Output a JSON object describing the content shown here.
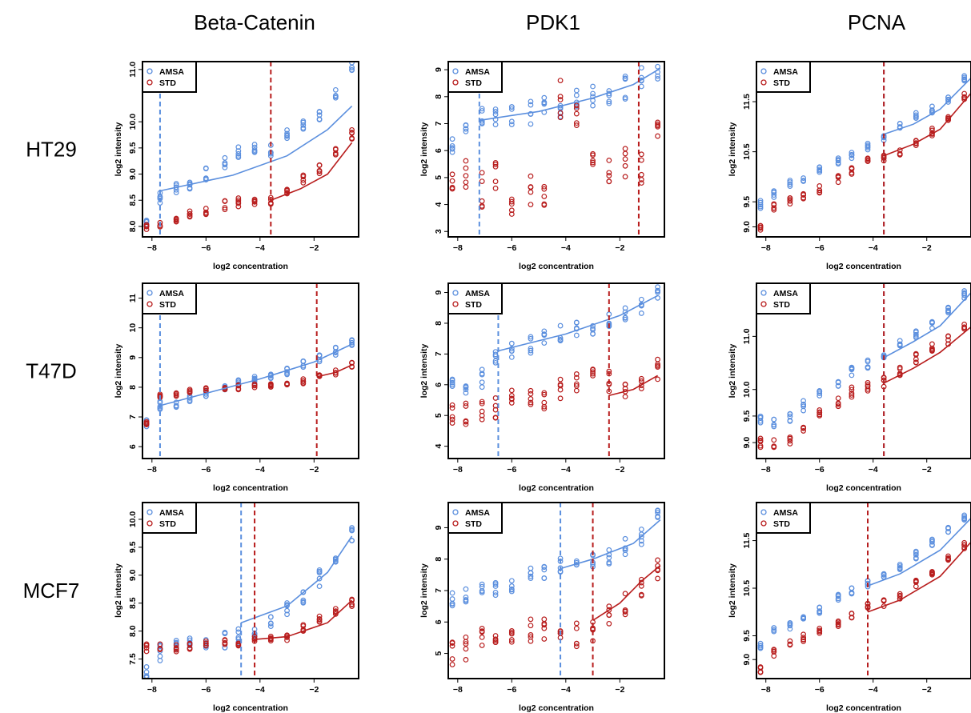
{
  "colors": {
    "AMSA": "#5b8fde",
    "STD": "#b81d1d"
  },
  "column_titles": [
    "Beta-Catenin",
    "PDK1",
    "PCNA"
  ],
  "row_labels": [
    "HT29",
    "T47D",
    "MCF7"
  ],
  "chart_data": [
    {
      "type": "scatter",
      "row": "HT29",
      "column": "Beta-Catenin",
      "xlabel": "log2 concentration",
      "ylabel": "log2 intensity",
      "xlim": [
        -8.35,
        -0.35
      ],
      "ylim": [
        7.8,
        11.15
      ],
      "xticks": [
        -8,
        -6,
        -4,
        -2
      ],
      "yticks": [
        8.0,
        8.5,
        9.0,
        9.5,
        10.0,
        11.0
      ],
      "ytick_labels": [
        "8.0",
        "8.5",
        "9.0",
        "9.5",
        "10.0",
        "11.0"
      ],
      "legend": [
        "AMSA",
        "STD"
      ],
      "legend_position": "top-left",
      "series": [
        {
          "name": "AMSA",
          "mean_at_levels": [
            8.1,
            8.55,
            8.75,
            8.8,
            9.0,
            9.2,
            9.4,
            9.5,
            9.45,
            9.75,
            9.95,
            10.15,
            10.5,
            11.05
          ],
          "spread": 0.12,
          "fit": [
            [
              -7.7,
              8.68
            ],
            [
              -5,
              8.98
            ],
            [
              -3,
              9.35
            ],
            [
              -1.5,
              9.85
            ],
            [
              -0.6,
              10.3
            ]
          ],
          "cutoff": -7.7
        },
        {
          "name": "STD",
          "mean_at_levels": [
            7.95,
            8.0,
            8.15,
            8.2,
            8.3,
            8.4,
            8.45,
            8.5,
            8.5,
            8.65,
            8.9,
            9.1,
            9.4,
            9.75
          ],
          "spread": 0.1,
          "fit": [
            [
              -3.6,
              8.5
            ],
            [
              -2.5,
              8.72
            ],
            [
              -1.5,
              9.0
            ],
            [
              -0.6,
              9.6
            ]
          ],
          "cutoff": -3.6
        }
      ]
    },
    {
      "type": "scatter",
      "row": "HT29",
      "column": "PDK1",
      "xlabel": "log2 concentration",
      "ylabel": "log2 intensity",
      "xlim": [
        -8.35,
        -0.35
      ],
      "ylim": [
        2.8,
        9.3
      ],
      "xticks": [
        -8,
        -6,
        -4,
        -2
      ],
      "yticks": [
        3,
        4,
        5,
        6,
        7,
        8,
        9
      ],
      "ytick_labels": [
        "3",
        "4",
        "5",
        "6",
        "7",
        "8",
        "9"
      ],
      "legend": [
        "AMSA",
        "STD"
      ],
      "legend_position": "top-left",
      "series": [
        {
          "name": "AMSA",
          "mean_at_levels": [
            6.3,
            6.8,
            7.2,
            7.2,
            7.3,
            7.4,
            7.6,
            7.7,
            7.8,
            7.95,
            8.15,
            8.35,
            8.75,
            9.05
          ],
          "spread": 0.45,
          "fit": [
            [
              -7.2,
              7.12
            ],
            [
              -5,
              7.45
            ],
            [
              -3,
              7.95
            ],
            [
              -1.5,
              8.45
            ],
            [
              -0.5,
              9.05
            ]
          ],
          "cutoff": -7.2
        },
        {
          "name": "STD",
          "mean_at_levels": [
            4.5,
            5.2,
            4.5,
            5.0,
            4.3,
            4.6,
            4.0,
            7.9,
            7.2,
            5.2,
            5.4,
            5.7,
            5.3,
            6.6
          ],
          "spread": 0.7,
          "fit": [],
          "cutoff": -1.3
        }
      ]
    },
    {
      "type": "scatter",
      "row": "HT29",
      "column": "PCNA",
      "xlabel": "log2 concentration",
      "ylabel": "log2 intensity",
      "xlim": [
        -8.35,
        -0.35
      ],
      "ylim": [
        8.8,
        12.3
      ],
      "xticks": [
        -8,
        -6,
        -4,
        -2
      ],
      "yticks": [
        9.0,
        9.5,
        10.5,
        11.5
      ],
      "ytick_labels": [
        "9.0",
        "9.5",
        "10.5",
        "11.5"
      ],
      "legend": [
        "AMSA",
        "STD"
      ],
      "legend_position": "top-left",
      "series": [
        {
          "name": "AMSA",
          "mean_at_levels": [
            9.45,
            9.65,
            9.85,
            9.95,
            10.15,
            10.3,
            10.45,
            10.6,
            10.8,
            11.0,
            11.2,
            11.35,
            11.55,
            11.95
          ],
          "spread": 0.08,
          "fit": [
            [
              -3.6,
              10.85
            ],
            [
              -2.5,
              11.05
            ],
            [
              -1.5,
              11.35
            ],
            [
              -0.3,
              12.0
            ]
          ],
          "cutoff": -3.6
        },
        {
          "name": "STD",
          "mean_at_levels": [
            9.0,
            9.4,
            9.5,
            9.6,
            9.75,
            9.95,
            10.1,
            10.3,
            10.4,
            10.5,
            10.7,
            10.9,
            11.15,
            11.6
          ],
          "spread": 0.08,
          "fit": [
            [
              -3.6,
              10.42
            ],
            [
              -2.5,
              10.65
            ],
            [
              -1.5,
              10.95
            ],
            [
              -0.3,
              11.7
            ]
          ],
          "cutoff": -3.6
        }
      ]
    },
    {
      "type": "scatter",
      "row": "T47D",
      "column": "Beta-Catenin",
      "xlabel": "log2 concentration",
      "ylabel": "log2 intensity",
      "xlim": [
        -8.35,
        -0.35
      ],
      "ylim": [
        5.6,
        11.5
      ],
      "xticks": [
        -8,
        -6,
        -4,
        -2
      ],
      "yticks": [
        6,
        7,
        8,
        9,
        10,
        11
      ],
      "ytick_labels": [
        "6",
        "7",
        "8",
        "9",
        "10",
        "11"
      ],
      "legend": [
        "AMSA",
        "STD"
      ],
      "legend_position": "top-left",
      "series": [
        {
          "name": "AMSA",
          "mean_at_levels": [
            6.8,
            7.4,
            7.45,
            7.6,
            7.8,
            8.0,
            8.15,
            8.3,
            8.4,
            8.55,
            8.75,
            9.0,
            9.2,
            9.55
          ],
          "spread": 0.15,
          "fit": [
            [
              -7.7,
              7.38
            ],
            [
              -4,
              8.28
            ],
            [
              -2,
              8.85
            ],
            [
              -0.6,
              9.45
            ]
          ],
          "cutoff": -7.7
        },
        {
          "name": "STD",
          "mean_at_levels": [
            6.8,
            7.7,
            7.75,
            7.85,
            7.9,
            7.95,
            8.0,
            8.05,
            8.05,
            8.1,
            8.2,
            8.4,
            8.5,
            8.75
          ],
          "spread": 0.08,
          "fit": [
            [
              -1.9,
              8.35
            ],
            [
              -1.2,
              8.5
            ],
            [
              -0.6,
              8.75
            ]
          ],
          "cutoff": -1.9
        }
      ]
    },
    {
      "type": "scatter",
      "row": "T47D",
      "column": "PDK1",
      "xlabel": "log2 concentration",
      "ylabel": "log2 intensity",
      "xlim": [
        -8.35,
        -0.35
      ],
      "ylim": [
        3.6,
        9.3
      ],
      "xticks": [
        -8,
        -6,
        -4,
        -2
      ],
      "yticks": [
        4,
        5,
        6,
        7,
        8,
        9
      ],
      "ytick_labels": [
        "4",
        "5",
        "6",
        "7",
        "8",
        "9"
      ],
      "legend": [
        "AMSA",
        "STD"
      ],
      "legend_position": "top-left",
      "series": [
        {
          "name": "AMSA",
          "mean_at_levels": [
            5.9,
            6.0,
            6.2,
            7.0,
            7.1,
            7.3,
            7.5,
            7.7,
            7.8,
            7.9,
            8.1,
            8.4,
            8.6,
            8.9
          ],
          "spread": 0.3,
          "fit": [
            [
              -6.5,
              7.1
            ],
            [
              -4,
              7.65
            ],
            [
              -2,
              8.25
            ],
            [
              -0.6,
              8.9
            ]
          ],
          "cutoff": -6.5
        },
        {
          "name": "STD",
          "mean_at_levels": [
            5.0,
            5.1,
            5.2,
            5.3,
            5.5,
            5.5,
            5.6,
            5.8,
            6.0,
            6.2,
            6.1,
            5.8,
            6.2,
            6.5
          ],
          "spread": 0.4,
          "fit": [
            [
              -2.4,
              5.65
            ],
            [
              -1.5,
              5.85
            ],
            [
              -0.6,
              6.3
            ]
          ],
          "cutoff": -2.4
        }
      ]
    },
    {
      "type": "scatter",
      "row": "T47D",
      "column": "PCNA",
      "xlabel": "log2 concentration",
      "ylabel": "log2 intensity",
      "xlim": [
        -8.35,
        -0.35
      ],
      "ylim": [
        8.7,
        12.0
      ],
      "xticks": [
        -8,
        -6,
        -4,
        -2
      ],
      "yticks": [
        9.0,
        9.5,
        10.0,
        11.0
      ],
      "ytick_labels": [
        "9.0",
        "9.5",
        "10.0",
        "11.0"
      ],
      "legend": [
        "AMSA",
        "STD"
      ],
      "legend_position": "top-left",
      "series": [
        {
          "name": "AMSA",
          "mean_at_levels": [
            9.4,
            9.4,
            9.45,
            9.7,
            9.95,
            10.15,
            10.35,
            10.5,
            10.6,
            10.85,
            11.05,
            11.25,
            11.45,
            11.8
          ],
          "spread": 0.1,
          "fit": [
            [
              -3.6,
              10.6
            ],
            [
              -2.5,
              10.9
            ],
            [
              -1.5,
              11.2
            ],
            [
              -0.3,
              11.85
            ]
          ],
          "cutoff": -3.6
        },
        {
          "name": "STD",
          "mean_at_levels": [
            9.0,
            9.0,
            9.05,
            9.3,
            9.55,
            9.75,
            9.95,
            10.05,
            10.15,
            10.35,
            10.6,
            10.8,
            10.95,
            11.2
          ],
          "spread": 0.1,
          "fit": [
            [
              -3.6,
              10.12
            ],
            [
              -2.5,
              10.4
            ],
            [
              -1.5,
              10.7
            ],
            [
              -0.3,
              11.2
            ]
          ],
          "cutoff": -3.6
        }
      ]
    },
    {
      "type": "scatter",
      "row": "MCF7",
      "column": "Beta-Catenin",
      "xlabel": "log2 concentration",
      "ylabel": "log2 intensity",
      "xlim": [
        -8.35,
        -0.35
      ],
      "ylim": [
        7.15,
        10.3
      ],
      "xticks": [
        -8,
        -6,
        -4,
        -2
      ],
      "yticks": [
        7.5,
        8.0,
        8.5,
        9.0,
        9.5,
        10.0
      ],
      "ytick_labels": [
        "7.5",
        "8.0",
        "8.5",
        "9.0",
        "9.5",
        "10.0"
      ],
      "legend": [
        "AMSA",
        "STD"
      ],
      "legend_position": "top-left",
      "series": [
        {
          "name": "AMSA",
          "mean_at_levels": [
            7.3,
            7.6,
            7.7,
            7.75,
            7.8,
            7.85,
            7.9,
            8.05,
            8.2,
            8.4,
            8.65,
            8.95,
            9.3,
            9.7
          ],
          "spread": 0.15,
          "fit": [
            [
              -4.7,
              8.15
            ],
            [
              -3,
              8.45
            ],
            [
              -1.5,
              9.05
            ],
            [
              -0.6,
              9.7
            ]
          ],
          "cutoff": -4.7
        },
        {
          "name": "STD",
          "mean_at_levels": [
            7.7,
            7.7,
            7.7,
            7.72,
            7.75,
            7.78,
            7.8,
            7.85,
            7.85,
            7.9,
            8.05,
            8.2,
            8.35,
            8.5
          ],
          "spread": 0.07,
          "fit": [
            [
              -4.2,
              7.85
            ],
            [
              -3,
              7.9
            ],
            [
              -1.5,
              8.15
            ],
            [
              -0.6,
              8.55
            ]
          ],
          "cutoff": -4.2
        }
      ]
    },
    {
      "type": "scatter",
      "row": "MCF7",
      "column": "PDK1",
      "xlabel": "log2 concentration",
      "ylabel": "log2 intensity",
      "xlim": [
        -8.35,
        -0.35
      ],
      "ylim": [
        4.2,
        9.8
      ],
      "xticks": [
        -8,
        -6,
        -4,
        -2
      ],
      "yticks": [
        5,
        6,
        7,
        8,
        9
      ],
      "ytick_labels": [
        "5",
        "6",
        "7",
        "8",
        "9"
      ],
      "legend": [
        "AMSA",
        "STD"
      ],
      "legend_position": "top-left",
      "series": [
        {
          "name": "AMSA",
          "mean_at_levels": [
            6.7,
            6.8,
            7.1,
            7.1,
            7.2,
            7.5,
            7.6,
            7.8,
            7.7,
            7.9,
            8.1,
            8.4,
            8.7,
            9.3
          ],
          "spread": 0.25,
          "fit": [
            [
              -4.2,
              7.7
            ],
            [
              -3,
              8.0
            ],
            [
              -1.5,
              8.5
            ],
            [
              -0.5,
              9.25
            ]
          ],
          "cutoff": -4.2
        },
        {
          "name": "STD",
          "mean_at_levels": [
            5.0,
            5.2,
            5.6,
            5.6,
            5.5,
            5.7,
            5.8,
            5.7,
            5.6,
            5.6,
            6.2,
            6.6,
            7.2,
            7.7
          ],
          "spread": 0.4,
          "fit": [
            [
              -3.0,
              6.05
            ],
            [
              -2,
              6.6
            ],
            [
              -1.2,
              7.3
            ],
            [
              -0.5,
              7.8
            ]
          ],
          "cutoff": -3.0
        }
      ]
    },
    {
      "type": "scatter",
      "row": "MCF7",
      "column": "PCNA",
      "xlabel": "log2 concentration",
      "ylabel": "log2 intensity",
      "xlim": [
        -8.35,
        -0.35
      ],
      "ylim": [
        8.6,
        12.3
      ],
      "xticks": [
        -8,
        -6,
        -4,
        -2
      ],
      "yticks": [
        9.0,
        9.5,
        10.5,
        11.5
      ],
      "ytick_labels": [
        "9.0",
        "9.5",
        "10.5",
        "11.5"
      ],
      "legend": [
        "AMSA",
        "STD"
      ],
      "legend_position": "top-left",
      "series": [
        {
          "name": "AMSA",
          "mean_at_levels": [
            9.3,
            9.6,
            9.7,
            9.85,
            10.05,
            10.3,
            10.45,
            10.6,
            10.75,
            10.95,
            11.2,
            11.45,
            11.75,
            12.0
          ],
          "spread": 0.08,
          "fit": [
            [
              -4.2,
              10.55
            ],
            [
              -3,
              10.8
            ],
            [
              -1.5,
              11.3
            ],
            [
              -0.3,
              12.0
            ]
          ],
          "cutoff": -4.2
        },
        {
          "name": "STD",
          "mean_at_levels": [
            8.8,
            9.15,
            9.35,
            9.45,
            9.6,
            9.75,
            9.95,
            10.1,
            10.2,
            10.35,
            10.6,
            10.85,
            11.1,
            11.4
          ],
          "spread": 0.08,
          "fit": [
            [
              -4.2,
              10.0
            ],
            [
              -3,
              10.25
            ],
            [
              -1.5,
              10.75
            ],
            [
              -0.3,
              11.5
            ]
          ],
          "cutoff": -4.2
        }
      ]
    }
  ]
}
